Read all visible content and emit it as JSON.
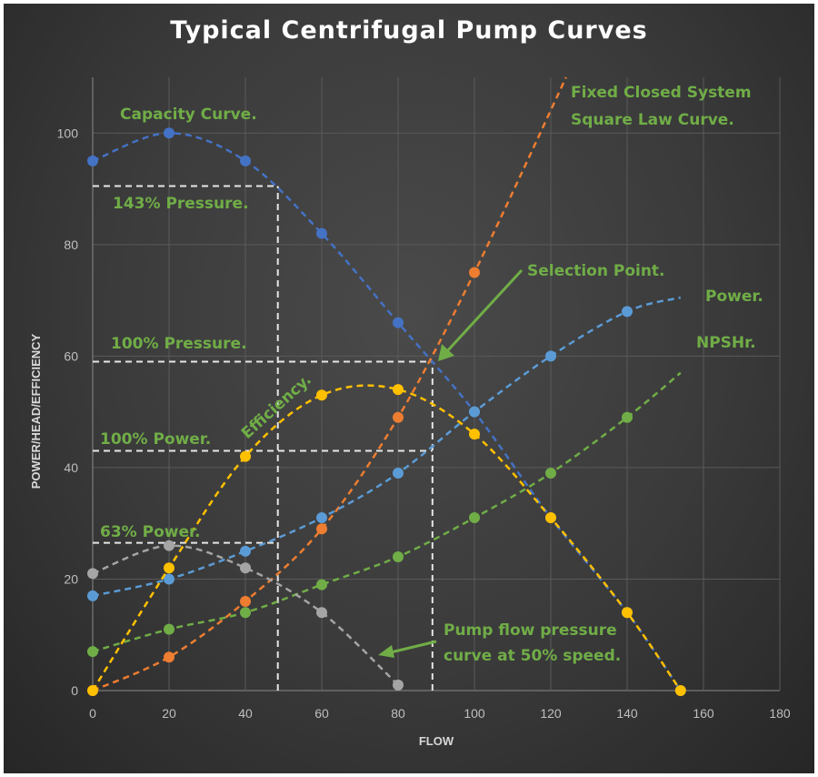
{
  "chart_data": {
    "type": "line",
    "title": "Typical Centrifugal Pump Curves",
    "xlabel": "FLOW",
    "ylabel": "POWER/HEAD/EFFICIENCY",
    "xlim": [
      0,
      180
    ],
    "ylim": [
      0,
      110
    ],
    "xticks": [
      0,
      20,
      40,
      60,
      80,
      100,
      120,
      140,
      160,
      180
    ],
    "yticks": [
      0,
      20,
      40,
      60,
      80,
      100
    ],
    "grid": true,
    "legend": "none",
    "series": [
      {
        "key": "capacity",
        "color": "#4472c4",
        "points": [
          [
            0,
            95
          ],
          [
            20,
            100
          ],
          [
            40,
            95
          ],
          [
            60,
            82
          ],
          [
            80,
            66
          ],
          [
            100,
            50
          ],
          [
            120,
            31
          ],
          [
            140,
            14
          ],
          [
            154,
            0
          ]
        ]
      },
      {
        "key": "system",
        "color": "#ed7d31",
        "points": [
          [
            0,
            0
          ],
          [
            20,
            6
          ],
          [
            40,
            16
          ],
          [
            60,
            29
          ],
          [
            80,
            49
          ],
          [
            100,
            75
          ]
        ],
        "line_end": [
          124,
          110
        ]
      },
      {
        "key": "power",
        "color": "#5b9bd5",
        "points": [
          [
            0,
            17
          ],
          [
            20,
            20
          ],
          [
            40,
            25
          ],
          [
            60,
            31
          ],
          [
            80,
            39
          ],
          [
            100,
            50
          ],
          [
            120,
            60
          ],
          [
            140,
            68
          ]
        ],
        "line_end": [
          154,
          70.5
        ]
      },
      {
        "key": "npshr",
        "color": "#70ad47",
        "points": [
          [
            0,
            7
          ],
          [
            20,
            11
          ],
          [
            40,
            14
          ],
          [
            60,
            19
          ],
          [
            80,
            24
          ],
          [
            100,
            31
          ],
          [
            120,
            39
          ],
          [
            140,
            49
          ]
        ],
        "line_end": [
          154,
          57
        ]
      },
      {
        "key": "half_speed",
        "color": "#a5a5a5",
        "points": [
          [
            0,
            21
          ],
          [
            20,
            26
          ],
          [
            40,
            22
          ],
          [
            60,
            14
          ],
          [
            80,
            1
          ]
        ]
      },
      {
        "key": "efficiency",
        "color": "#ffc000",
        "points": [
          [
            0,
            0
          ],
          [
            20,
            22
          ],
          [
            40,
            42
          ],
          [
            60,
            53
          ],
          [
            80,
            54
          ],
          [
            100,
            46
          ],
          [
            120,
            31
          ],
          [
            140,
            14
          ],
          [
            154,
            0
          ]
        ]
      }
    ],
    "reference_lines": [
      {
        "from": [
          0,
          90.5
        ],
        "to": [
          48.5,
          90.5
        ]
      },
      {
        "from": [
          48.5,
          0
        ],
        "to": [
          48.5,
          90.5
        ]
      },
      {
        "from": [
          0,
          59
        ],
        "to": [
          89,
          59
        ]
      },
      {
        "from": [
          89,
          0
        ],
        "to": [
          89,
          59
        ]
      },
      {
        "from": [
          0,
          43
        ],
        "to": [
          89,
          43
        ]
      },
      {
        "from": [
          0,
          26.5
        ],
        "to": [
          48.5,
          26.5
        ]
      }
    ],
    "annotations": {
      "capacity": "Capacity Curve.",
      "pressure143": "143% Pressure.",
      "pressure100": "100% Pressure.",
      "power100": "100% Power.",
      "power63": "63% Power.",
      "efficiency": "Efficiency.",
      "system1": "Fixed Closed System",
      "system2": "Square Law Curve.",
      "selection": "Selection Point.",
      "power": "Power.",
      "npshr": "NPSHr.",
      "half1": "Pump flow pressure",
      "half2": "curve at 50% speed."
    },
    "annotation_color": "#70ad47"
  }
}
